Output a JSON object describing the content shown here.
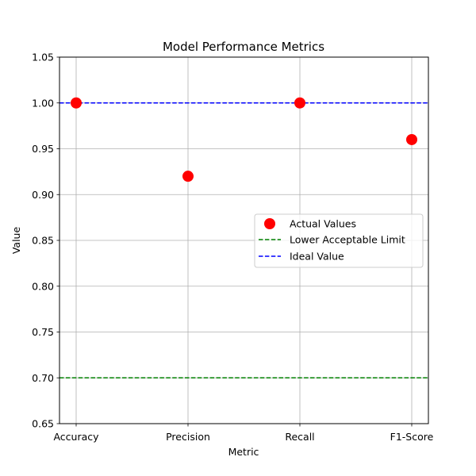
{
  "chart_data": {
    "type": "scatter",
    "title": "Model Performance Metrics",
    "xlabel": "Metric",
    "ylabel": "Value",
    "categories": [
      "Accuracy",
      "Precision",
      "Recall",
      "F1-Score"
    ],
    "ylim": [
      0.65,
      1.05
    ],
    "yticks": [
      0.65,
      0.7,
      0.75,
      0.8,
      0.85,
      0.9,
      0.95,
      1.0,
      1.05
    ],
    "ytick_labels": [
      "0.65",
      "0.70",
      "0.75",
      "0.80",
      "0.85",
      "0.90",
      "0.95",
      "1.00",
      "1.05"
    ],
    "grid": true,
    "legend_position": "center-right",
    "series": [
      {
        "name": "Actual Values",
        "kind": "scatter",
        "color": "#ff0000",
        "values": [
          1.0,
          0.92,
          1.0,
          0.96
        ]
      }
    ],
    "reference_lines": [
      {
        "name": "Lower Acceptable Limit",
        "y": 0.7,
        "color": "#008000",
        "style": "dashed"
      },
      {
        "name": "Ideal Value",
        "y": 1.0,
        "color": "#0000ff",
        "style": "dashed"
      }
    ],
    "legend": [
      "Actual Values",
      "Lower Acceptable Limit",
      "Ideal Value"
    ]
  }
}
